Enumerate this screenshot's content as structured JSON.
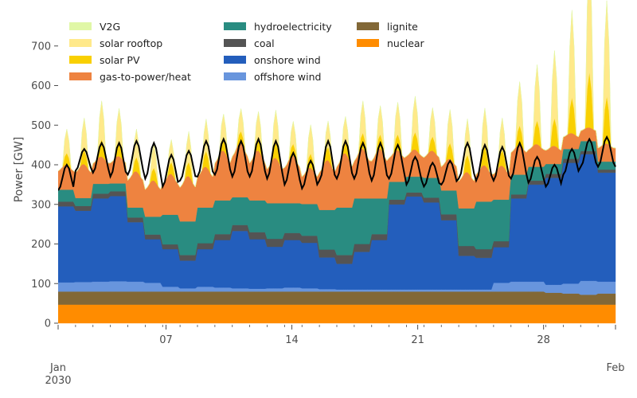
{
  "chart_data": {
    "type": "area",
    "ylabel": "Power [GW]",
    "ylim": [
      -10,
      770
    ],
    "yticks": [
      0,
      100,
      200,
      300,
      400,
      500,
      600,
      700
    ],
    "xrange": [
      "2030-01-01",
      "2030-02-01"
    ],
    "xticks": [
      {
        "date": "2030-01-01",
        "label": "Jan",
        "sublabel": "2030"
      },
      {
        "date": "2030-01-07",
        "label": "07",
        "sublabel": ""
      },
      {
        "date": "2030-01-14",
        "label": "14",
        "sublabel": ""
      },
      {
        "date": "2030-01-21",
        "label": "21",
        "sublabel": ""
      },
      {
        "date": "2030-01-28",
        "label": "28",
        "sublabel": ""
      },
      {
        "date": "2030-02-01",
        "label": "Feb",
        "sublabel": ""
      }
    ],
    "legend_position": "top-left",
    "stack_order": [
      "nuclear",
      "lignite",
      "offshore wind",
      "onshore wind",
      "coal",
      "hydroelectricity",
      "gas-to-power/heat",
      "solar PV",
      "solar rooftop",
      "V2G"
    ],
    "legend": [
      {
        "name": "V2G",
        "color": "#e0f7a6"
      },
      {
        "name": "solar rooftop",
        "color": "#ffe98a"
      },
      {
        "name": "solar PV",
        "color": "#f9d002"
      },
      {
        "name": "gas-to-power/heat",
        "color": "#ee8340"
      },
      {
        "name": "hydroelectricity",
        "color": "#298c81"
      },
      {
        "name": "coal",
        "color": "#545454"
      },
      {
        "name": "onshore wind",
        "color": "#235ebc"
      },
      {
        "name": "offshore wind",
        "color": "#6895dd"
      },
      {
        "name": "lignite",
        "color": "#826837"
      },
      {
        "name": "nuclear",
        "color": "#ff8c00"
      }
    ],
    "series": [
      {
        "name": "nuclear",
        "color": "#ff8c00",
        "values": [
          47,
          47,
          47,
          47,
          47,
          47,
          47,
          47,
          47,
          47,
          47,
          47,
          47,
          47,
          47,
          47,
          47,
          47,
          47,
          47,
          47,
          47,
          47,
          47,
          47,
          47,
          47,
          47,
          47,
          47,
          47,
          47
        ]
      },
      {
        "name": "lignite",
        "color": "#826837",
        "values": [
          33,
          33,
          33,
          33,
          33,
          33,
          33,
          33,
          33,
          33,
          33,
          33,
          33,
          33,
          33,
          33,
          33,
          33,
          33,
          33,
          33,
          33,
          33,
          33,
          33,
          33,
          33,
          33,
          30,
          28,
          25,
          28
        ]
      },
      {
        "name": "offshore wind",
        "color": "#6895dd",
        "values": [
          23,
          24,
          25,
          26,
          25,
          22,
          12,
          8,
          12,
          10,
          8,
          7,
          8,
          10,
          8,
          6,
          5,
          5,
          5,
          5,
          5,
          5,
          5,
          5,
          5,
          22,
          25,
          25,
          20,
          25,
          35,
          30
        ]
      },
      {
        "name": "onshore wind",
        "color": "#235ebc",
        "values": [
          192,
          180,
          210,
          215,
          150,
          110,
          95,
          70,
          95,
          120,
          145,
          125,
          105,
          120,
          115,
          80,
          65,
          95,
          125,
          215,
          235,
          220,
          175,
          85,
          80,
          90,
          210,
          245,
          270,
          305,
          320,
          275
        ]
      },
      {
        "name": "coal",
        "color": "#545454",
        "values": [
          12,
          12,
          12,
          12,
          12,
          12,
          12,
          14,
          15,
          15,
          15,
          18,
          20,
          18,
          18,
          20,
          22,
          20,
          15,
          12,
          10,
          12,
          15,
          25,
          22,
          15,
          10,
          10,
          10,
          10,
          8,
          8
        ]
      },
      {
        "name": "hydroelectricity",
        "color": "#298c81",
        "values": [
          30,
          20,
          25,
          20,
          25,
          45,
          75,
          85,
          90,
          85,
          70,
          80,
          90,
          75,
          80,
          100,
          120,
          115,
          90,
          45,
          40,
          50,
          60,
          95,
          120,
          105,
          50,
          35,
          25,
          25,
          25,
          20
        ]
      },
      {
        "name": "gas-to-power/heat",
        "color": "#ee8340",
        "values": [
          55,
          75,
          60,
          60,
          80,
          80,
          90,
          100,
          90,
          110,
          120,
          110,
          100,
          105,
          80,
          110,
          120,
          110,
          110,
          70,
          60,
          60,
          70,
          80,
          80,
          75,
          65,
          50,
          40,
          35,
          30,
          40
        ]
      },
      {
        "name": "solar PV",
        "color": "#f9d002",
        "values": [
          15,
          18,
          22,
          20,
          18,
          16,
          15,
          18,
          20,
          16,
          15,
          17,
          20,
          15,
          18,
          17,
          16,
          20,
          18,
          20,
          22,
          18,
          20,
          22,
          24,
          20,
          25,
          30,
          35,
          45,
          70,
          60
        ]
      },
      {
        "name": "solar rooftop",
        "color": "#ffe98a",
        "values": [
          30,
          40,
          48,
          40,
          35,
          30,
          28,
          38,
          40,
          30,
          28,
          32,
          40,
          28,
          36,
          32,
          30,
          40,
          36,
          40,
          45,
          36,
          42,
          45,
          48,
          40,
          55,
          70,
          85,
          110,
          145,
          120
        ]
      },
      {
        "name": "V2G",
        "color": "#e0f7a6",
        "values": [
          0,
          1,
          1,
          1,
          1,
          1,
          1,
          1,
          1,
          1,
          1,
          1,
          1,
          1,
          1,
          1,
          1,
          1,
          1,
          1,
          1,
          1,
          1,
          1,
          1,
          1,
          1,
          1,
          1,
          1,
          1,
          1
        ]
      }
    ],
    "demand_line": {
      "name": "demand",
      "color": "#000000",
      "day_max": [
        400,
        440,
        455,
        455,
        460,
        455,
        425,
        435,
        460,
        465,
        460,
        465,
        460,
        430,
        410,
        460,
        460,
        455,
        455,
        450,
        420,
        405,
        410,
        455,
        450,
        445,
        455,
        420,
        400,
        440,
        465,
        470
      ],
      "night_min": [
        335,
        385,
        380,
        370,
        375,
        365,
        345,
        360,
        370,
        375,
        370,
        370,
        365,
        350,
        340,
        360,
        365,
        365,
        360,
        365,
        350,
        345,
        350,
        365,
        360,
        360,
        365,
        355,
        345,
        375,
        395,
        395
      ]
    }
  }
}
